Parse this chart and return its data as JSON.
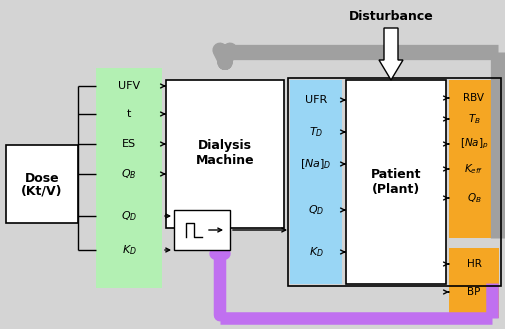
{
  "bg_color": "#d4d4d4",
  "green_color": "#b3f0b3",
  "blue_color": "#99d6f5",
  "orange_color": "#f5a623",
  "purple_color": "#c070f0",
  "gray_color": "#a0a0a0",
  "title": "Disturbance",
  "dose_label1": "Dose",
  "dose_label2": "(Kt/V)",
  "dm_label1": "Dialysis",
  "dm_label2": "Machine",
  "pat_label1": "Patient",
  "pat_label2": "(Plant)",
  "green_labels": [
    "UFV",
    "t",
    "ES",
    "Q_B",
    "Q_D",
    "K_D"
  ],
  "blue_labels": [
    "UFR",
    "T_D",
    "[Na]_D",
    "Q_D",
    "K_D"
  ],
  "orange_top_labels": [
    "RBV",
    "T_B",
    "[Na]_p",
    "K_eff",
    "Q_B"
  ],
  "orange_bot_labels": [
    "HR",
    "BP"
  ],
  "figw": 5.06,
  "figh": 3.29,
  "dpi": 100
}
